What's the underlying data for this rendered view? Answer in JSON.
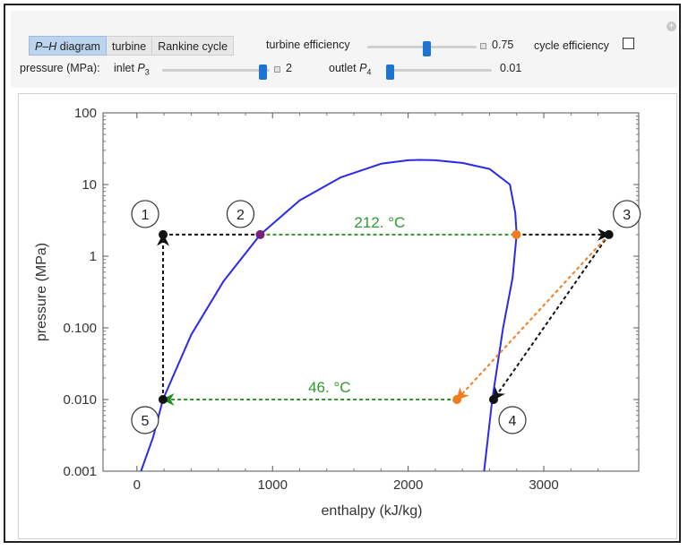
{
  "controls": {
    "tabs": [
      {
        "label_prefix": "P–H",
        "label_suffix": " diagram",
        "active": true
      },
      {
        "label": "turbine",
        "active": false
      },
      {
        "label": "Rankine cycle",
        "active": false
      }
    ],
    "turbine_efficiency": {
      "label": "turbine efficiency",
      "value": "0.75",
      "fraction": 0.55
    },
    "cycle_efficiency": {
      "label": "cycle efficiency",
      "checked": false
    },
    "pressure_label": "pressure (MPa):",
    "inlet": {
      "label": "inlet",
      "symbol": "P",
      "sub": "3",
      "value": "2",
      "fraction": 0.97
    },
    "outlet": {
      "label": "outlet",
      "symbol": "P",
      "sub": "4",
      "value": "0.01",
      "fraction": 0.0
    }
  },
  "chart_data": {
    "type": "line",
    "xlabel": "enthalpy (kJ/kg)",
    "ylabel": "pressure (MPa)",
    "xlim": [
      -250,
      3700
    ],
    "ylim": [
      0.001,
      100
    ],
    "yscale": "log",
    "x_ticks": [
      0,
      1000,
      2000,
      3000
    ],
    "y_ticks": [
      {
        "value": 0.001,
        "label": "0.001"
      },
      {
        "value": 0.01,
        "label": "0.010"
      },
      {
        "value": 0.1,
        "label": "0.100"
      },
      {
        "value": 1,
        "label": "1"
      },
      {
        "value": 10,
        "label": "10"
      },
      {
        "value": 100,
        "label": "100"
      }
    ],
    "colors": {
      "dome": "#2a2ae8",
      "isotherm": "#2e9a2e",
      "actual": "#f47c20",
      "cycle": "#111111",
      "state2": "#7a1f7a"
    },
    "dome": [
      [
        30,
        0.001
      ],
      [
        120,
        0.003
      ],
      [
        192,
        0.01
      ],
      [
        400,
        0.08
      ],
      [
        640,
        0.45
      ],
      [
        910,
        2.0
      ],
      [
        1200,
        6.0
      ],
      [
        1500,
        12.5
      ],
      [
        1800,
        19.5
      ],
      [
        2000,
        21.8
      ],
      [
        2090,
        22.06
      ],
      [
        2200,
        21.8
      ],
      [
        2400,
        20.0
      ],
      [
        2600,
        16.5
      ],
      [
        2750,
        10.0
      ],
      [
        2790,
        4.0
      ],
      [
        2800,
        2.0
      ],
      [
        2770,
        0.5
      ],
      [
        2700,
        0.1
      ],
      [
        2620,
        0.01
      ],
      [
        2560,
        0.001
      ]
    ],
    "cycle_points": [
      {
        "label": "1",
        "h": 193,
        "P": 2.0
      },
      {
        "label": "2",
        "h": 909,
        "P": 2.0
      },
      {
        "label": "3",
        "h": 3480,
        "P": 2.0
      },
      {
        "label": "4",
        "h": 2630,
        "P": 0.01
      },
      {
        "label": "5",
        "h": 192,
        "P": 0.01
      }
    ],
    "actual_points": [
      {
        "name": "saturated-vapor",
        "h": 2798,
        "P": 2.0
      },
      {
        "name": "isentropic-exit",
        "h": 2360,
        "P": 0.01
      }
    ],
    "isotherm_labels": [
      {
        "text": "212. °C",
        "h": 1790,
        "P": 2.0
      },
      {
        "text": "46. °C",
        "h": 1420,
        "P": 0.01
      }
    ]
  }
}
